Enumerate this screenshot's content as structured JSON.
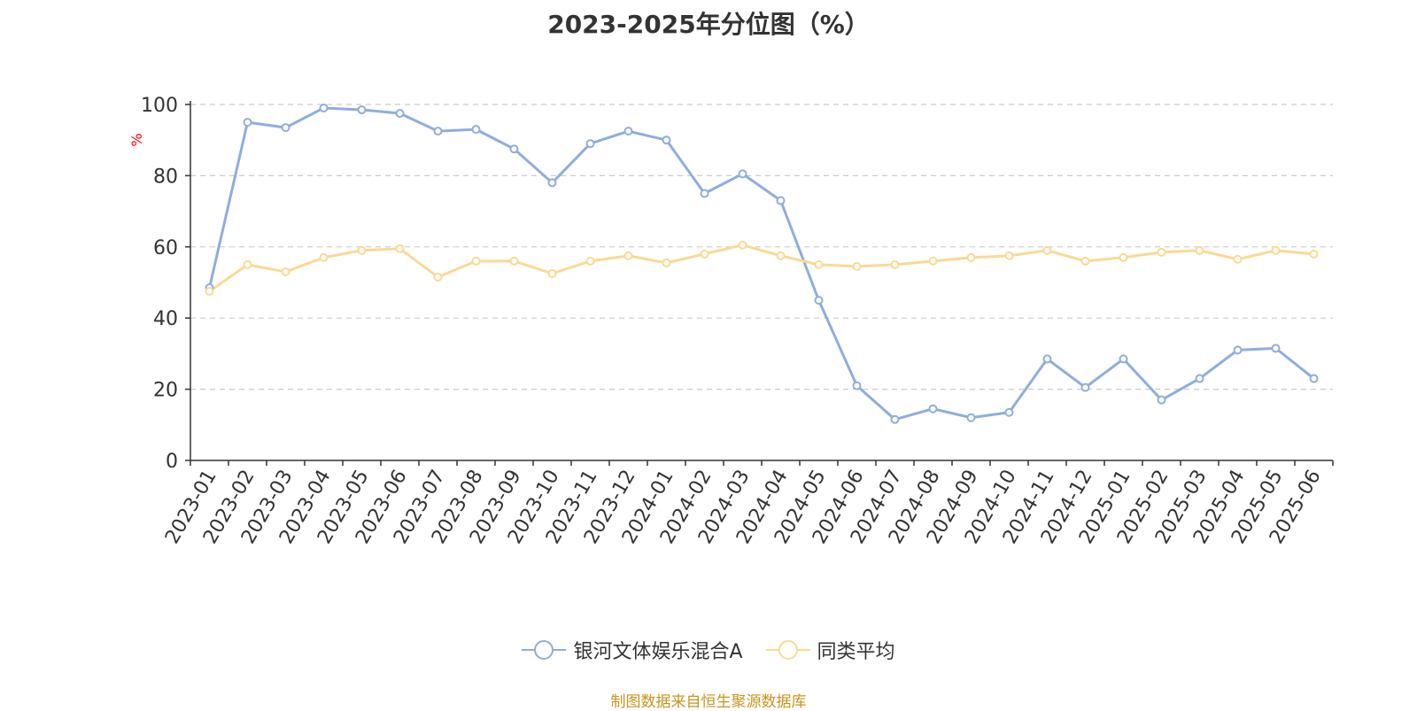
{
  "title": "2023-2025年分位图（%）",
  "source_note": "制图数据来自恒生聚源数据库",
  "colors": {
    "series_main": "#8eaedc",
    "series_avg": "#fbd994",
    "grid": "#cccccc",
    "axis": "#333333",
    "ylabel": "#ff0000",
    "source": "#c8941e"
  },
  "chart_data": {
    "type": "line",
    "title": "2023-2025年分位图（%）",
    "xlabel": "",
    "ylabel": "%",
    "ylim": [
      0,
      100
    ],
    "yticks": [
      0,
      20,
      40,
      60,
      80,
      100
    ],
    "grid": true,
    "legend_position": "bottom",
    "categories": [
      "2023-01",
      "2023-02",
      "2023-03",
      "2023-04",
      "2023-05",
      "2023-06",
      "2023-07",
      "2023-08",
      "2023-09",
      "2023-10",
      "2023-11",
      "2023-12",
      "2024-01",
      "2024-02",
      "2024-03",
      "2024-04",
      "2024-05",
      "2024-06",
      "2024-07",
      "2024-08",
      "2024-09",
      "2024-10",
      "2024-11",
      "2024-12",
      "2025-01",
      "2025-02",
      "2025-03",
      "2025-04",
      "2025-05",
      "2025-06"
    ],
    "series": [
      {
        "name": "银河文体娱乐混合A",
        "color": "#8eaedc",
        "values": [
          48.5,
          95,
          93.5,
          99,
          98.5,
          97.5,
          92.5,
          93,
          87.5,
          78,
          89,
          92.5,
          90,
          75,
          80.5,
          73,
          45,
          21,
          11.5,
          14.5,
          12,
          13.5,
          28.5,
          20.5,
          28.5,
          17,
          23,
          31,
          31.5,
          23
        ]
      },
      {
        "name": "同类平均",
        "color": "#fbd994",
        "values": [
          47.5,
          55,
          53,
          57,
          59,
          59.5,
          51.5,
          56,
          56,
          52.5,
          56,
          57.5,
          55.5,
          58,
          60.5,
          57.5,
          55,
          54.5,
          55,
          56,
          57,
          57.5,
          59,
          56,
          57,
          58.5,
          59,
          56.5,
          59,
          58
        ]
      }
    ]
  }
}
